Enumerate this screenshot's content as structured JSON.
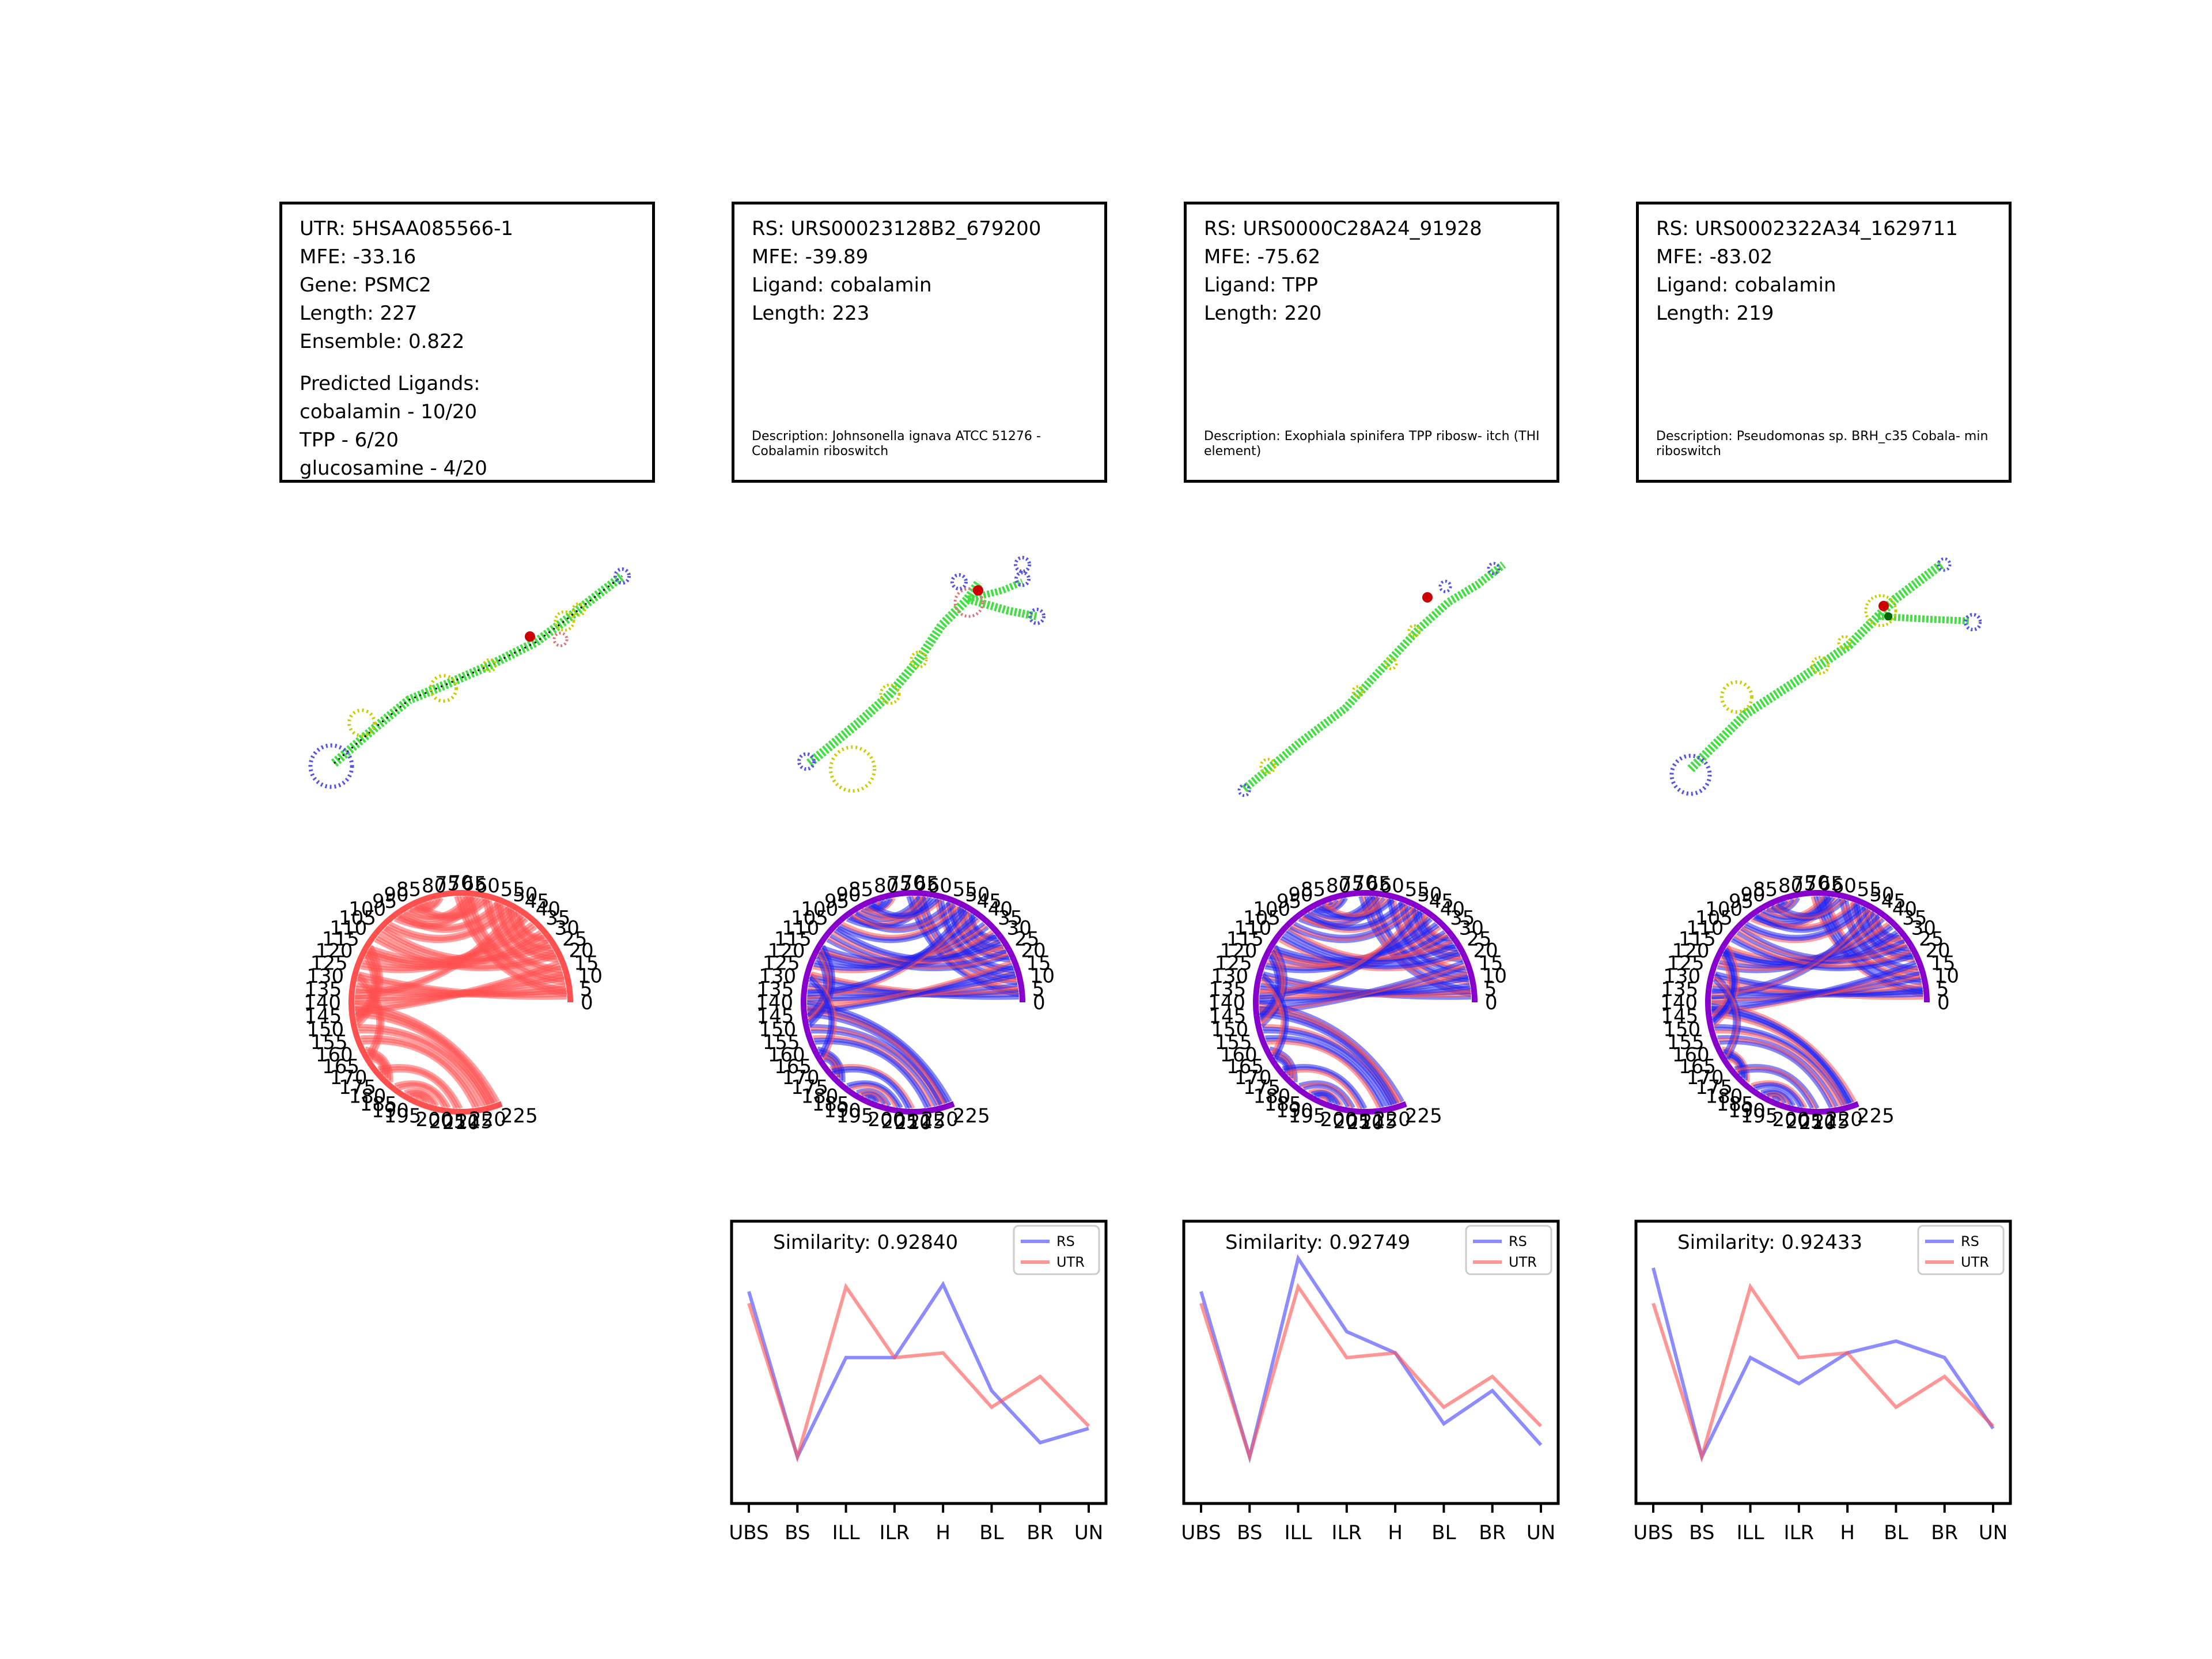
{
  "panels": [
    {
      "info_lines": [
        "UTR: 5HSAA085566-1",
        "MFE: -33.16",
        "Gene: PSMC2",
        "Length: 227",
        "Ensemble: 0.822"
      ],
      "predicted_header": "Predicted Ligands:",
      "predicted": [
        "cobalamin - 10/20",
        "TPP - 6/20",
        "glucosamine - 4/20"
      ],
      "description": ""
    },
    {
      "info_lines": [
        "RS: URS00023128B2_679200",
        "MFE: -39.89",
        "Ligand: cobalamin",
        "Length: 223"
      ],
      "description": "Description: Johnsonella ignava ATCC 51276 - Cobalamin riboswitch"
    },
    {
      "info_lines": [
        "RS: URS0000C28A24_91928",
        "MFE: -75.62",
        "Ligand: TPP",
        "Length: 220"
      ],
      "description": "Description: Exophiala spinifera TPP ribosw- itch (THI element)"
    },
    {
      "info_lines": [
        "RS: URS0002322A34_1629711",
        "MFE: -83.02",
        "Ligand: cobalamin",
        "Length: 219"
      ],
      "description": "Description: Pseudomonas sp. BRH_c35 Cobala- min riboswitch"
    }
  ],
  "colors": {
    "rs": "#4040ff",
    "utr": "#ff5050",
    "stem": "#44dd44",
    "hairpin": "#5555dd",
    "interior": "#cccc00",
    "marker": "#cc0000"
  },
  "arc_ticks": [
    "0",
    "5",
    "10",
    "15",
    "20",
    "25",
    "30",
    "35",
    "40",
    "45",
    "50",
    "55",
    "60",
    "65",
    "70",
    "75",
    "80",
    "85",
    "90",
    "95",
    "100",
    "105",
    "110",
    "115",
    "120",
    "125",
    "130",
    "135",
    "140",
    "145",
    "150",
    "155",
    "160",
    "165",
    "170",
    "175",
    "180",
    "185",
    "190",
    "195",
    "200",
    "205",
    "210",
    "215",
    "220",
    "225"
  ],
  "chart_data": [
    {
      "type": "line",
      "title": "Similarity: 0.92840",
      "categories": [
        "UBS",
        "BS",
        "ILL",
        "ILR",
        "H",
        "BL",
        "BR",
        "UN"
      ],
      "ylim": [
        0,
        1
      ],
      "series": [
        {
          "name": "RS",
          "values": [
            0.8,
            0.1,
            0.52,
            0.52,
            0.83,
            0.38,
            0.16,
            0.22
          ]
        },
        {
          "name": "UTR",
          "values": [
            0.75,
            0.1,
            0.82,
            0.52,
            0.54,
            0.31,
            0.44,
            0.23
          ]
        }
      ]
    },
    {
      "type": "line",
      "title": "Similarity: 0.92749",
      "categories": [
        "UBS",
        "BS",
        "ILL",
        "ILR",
        "H",
        "BL",
        "BR",
        "UN"
      ],
      "ylim": [
        0,
        1
      ],
      "series": [
        {
          "name": "RS",
          "values": [
            0.8,
            0.1,
            0.94,
            0.63,
            0.54,
            0.24,
            0.38,
            0.15
          ]
        },
        {
          "name": "UTR",
          "values": [
            0.75,
            0.1,
            0.82,
            0.52,
            0.54,
            0.31,
            0.44,
            0.23
          ]
        }
      ]
    },
    {
      "type": "line",
      "title": "Similarity: 0.92433",
      "categories": [
        "UBS",
        "BS",
        "ILL",
        "ILR",
        "H",
        "BL",
        "BR",
        "UN"
      ],
      "ylim": [
        0,
        1
      ],
      "series": [
        {
          "name": "RS",
          "values": [
            0.9,
            0.1,
            0.52,
            0.41,
            0.54,
            0.59,
            0.52,
            0.22
          ]
        },
        {
          "name": "UTR",
          "values": [
            0.75,
            0.1,
            0.82,
            0.52,
            0.54,
            0.31,
            0.44,
            0.23
          ]
        }
      ]
    }
  ]
}
